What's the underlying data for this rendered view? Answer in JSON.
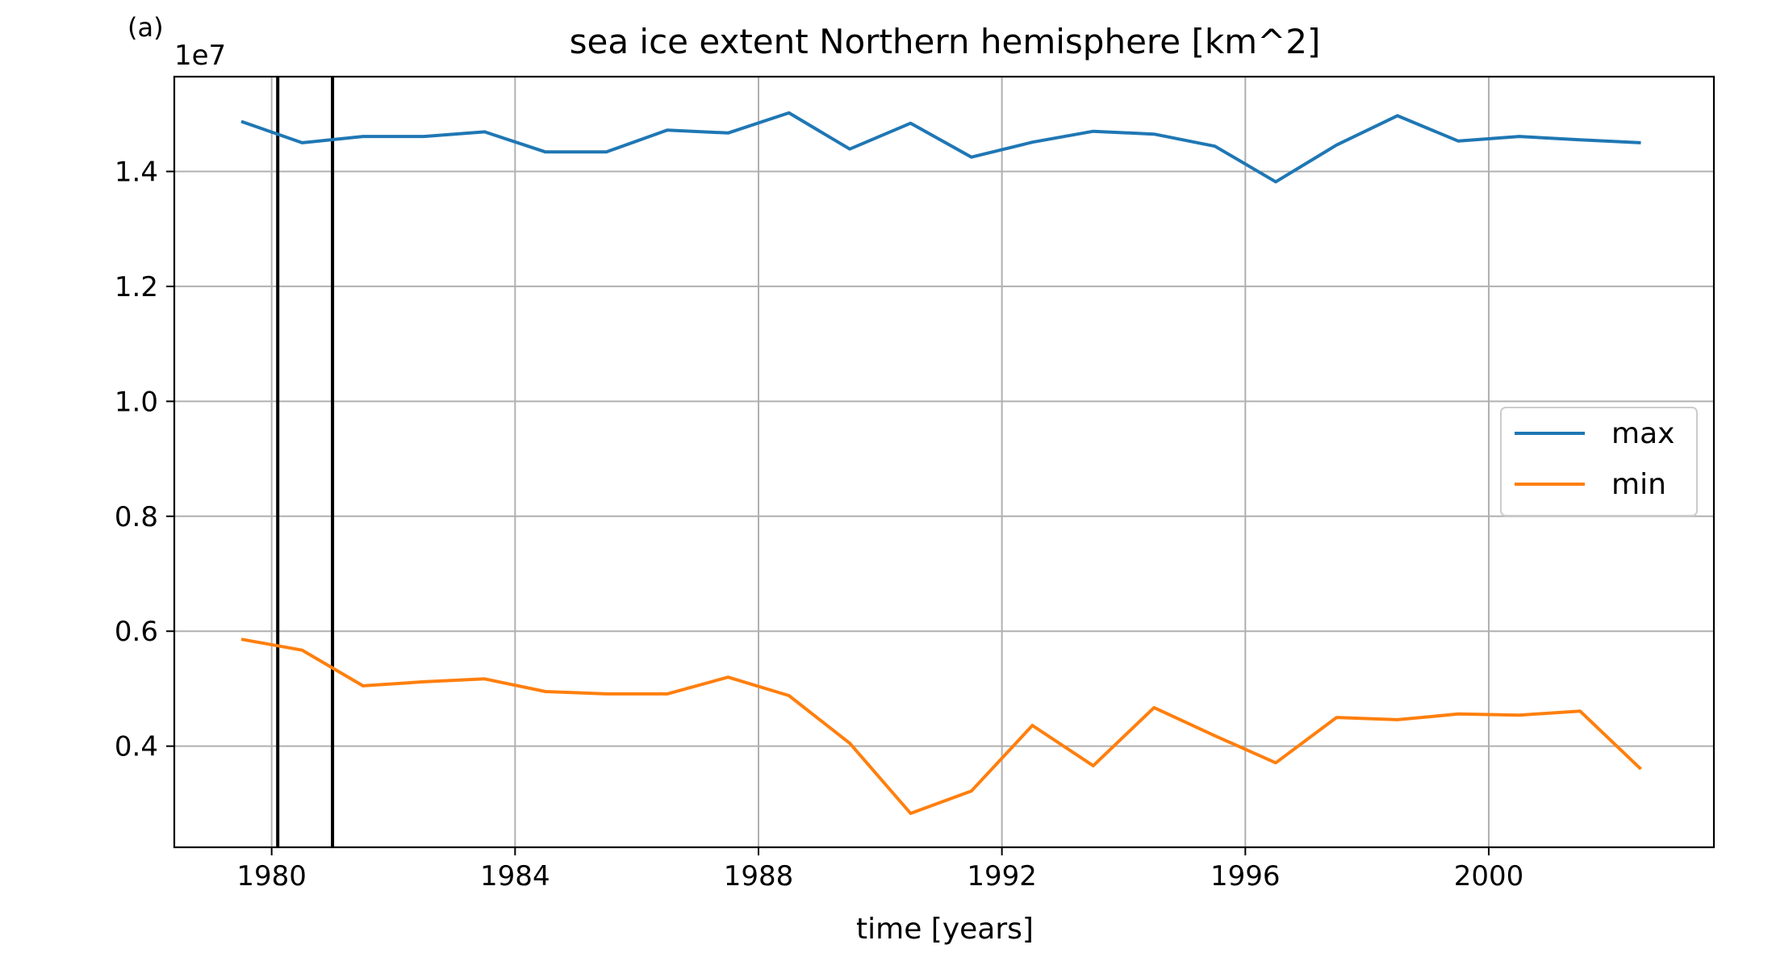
{
  "chart_data": {
    "type": "line",
    "panel_label": "(a)",
    "title": "sea ice extent Northern hemisphere [km^2]",
    "xlabel": "time [years]",
    "ylabel": "",
    "y_offset_label": "1e7",
    "xlim": [
      1978.4,
      2003.7
    ],
    "ylim": [
      0.224,
      1.565
    ],
    "x_ticks": [
      1980,
      1984,
      1988,
      1992,
      1996,
      2000
    ],
    "x_tick_labels": [
      "1980",
      "1984",
      "1988",
      "1992",
      "1996",
      "2000"
    ],
    "y_ticks": [
      0.4,
      0.6,
      0.8,
      1.0,
      1.2,
      1.4
    ],
    "y_tick_labels": [
      "0.4",
      "0.6",
      "0.8",
      "1.0",
      "1.2",
      "1.4"
    ],
    "grid": true,
    "legend_position": "center-right",
    "vertical_lines": [
      1980.1,
      1981.0
    ],
    "x": [
      1979.5,
      1980.5,
      1981.5,
      1982.5,
      1983.5,
      1984.5,
      1985.5,
      1986.5,
      1987.5,
      1988.5,
      1989.5,
      1990.5,
      1991.5,
      1992.5,
      1993.5,
      1994.5,
      1995.5,
      1996.5,
      1997.5,
      1998.5,
      1999.5,
      2000.5,
      2001.5,
      2002.5
    ],
    "series": [
      {
        "name": "max",
        "color": "#1f77b4",
        "values": [
          1.487,
          1.45,
          1.461,
          1.461,
          1.469,
          1.434,
          1.434,
          1.472,
          1.467,
          1.502,
          1.439,
          1.484,
          1.425,
          1.451,
          1.47,
          1.465,
          1.444,
          1.382,
          1.446,
          1.497,
          1.453,
          1.461,
          1.455,
          1.45
        ]
      },
      {
        "name": "min",
        "color": "#ff7f0e",
        "values": [
          0.586,
          0.567,
          0.505,
          0.512,
          0.517,
          0.495,
          0.491,
          0.491,
          0.52,
          0.488,
          0.405,
          0.283,
          0.322,
          0.436,
          0.366,
          0.467,
          0.418,
          0.371,
          0.45,
          0.446,
          0.456,
          0.454,
          0.461,
          0.36
        ]
      }
    ]
  }
}
